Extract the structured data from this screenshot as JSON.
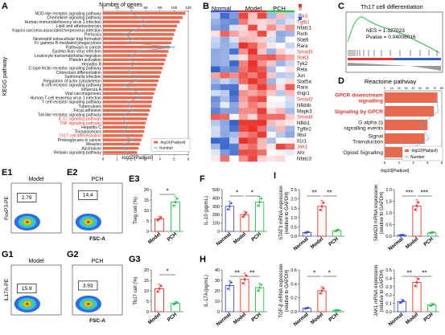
{
  "panel_labels": {
    "A": "A",
    "B": "B",
    "C": "C",
    "D": "D",
    "E1": "E1",
    "E2": "E2",
    "E3": "E3",
    "F": "F",
    "G1": "G1",
    "G2": "G2",
    "G3": "G3",
    "H": "H",
    "I": "I"
  },
  "colors": {
    "bar": "#e8694e",
    "line": "#4db8d9",
    "red_text": "#e8312a",
    "heat_hi": "#e8312a",
    "heat_lo": "#3060c8",
    "model_red": "#e8312a",
    "normal_blue": "#3f4fd6",
    "pch_green": "#2bbf4a"
  },
  "panelA": {
    "top_label": "Number of genes",
    "ylabel": "KEGG pathway",
    "xlabel": "-log10[Padjust]",
    "legend": [
      "-log10(Padjust)",
      "Number"
    ]
  },
  "panelB": {
    "groups": [
      "Normal",
      "Model",
      "PCH"
    ],
    "genes": [
      {
        "name": "Jak3",
        "red": true
      },
      {
        "name": "Tgfb1",
        "red": true
      },
      {
        "name": "Nfatc1",
        "red": false
      },
      {
        "name": "Rxrb",
        "red": false
      },
      {
        "name": "Stat6",
        "red": false
      },
      {
        "name": "Rara",
        "red": false
      },
      {
        "name": "Smad3",
        "red": true
      },
      {
        "name": "Stat3",
        "red": true
      },
      {
        "name": "Tyk2",
        "red": false
      },
      {
        "name": "Rela",
        "red": false
      },
      {
        "name": "Jun",
        "red": false
      },
      {
        "name": "Stat5a",
        "red": false
      },
      {
        "name": "Rara",
        "red": false
      },
      {
        "name": "Ifngr1",
        "red": false
      },
      {
        "name": "Smad2",
        "red": true
      },
      {
        "name": "Nfkbib",
        "red": false
      },
      {
        "name": "Mapk3",
        "red": false
      },
      {
        "name": "Smad4",
        "red": true
      },
      {
        "name": "Nfkb1",
        "red": false
      },
      {
        "name": "Tgfbr2",
        "red": false
      },
      {
        "name": "Il6st",
        "red": false
      },
      {
        "name": "Il1r1",
        "red": false
      },
      {
        "name": "Jak1",
        "red": true
      },
      {
        "name": "Ahr",
        "red": false
      },
      {
        "name": "Nfatc3",
        "red": false
      }
    ]
  },
  "panelC": {
    "title": "Th17 cell differentiation",
    "nes": "NES = 1.327023",
    "pvalue": "Pvalue = 0.04008016"
  },
  "panelD": {
    "title": "Reactome pathway",
    "legend": [
      "-log10(Padjust)",
      "Number"
    ],
    "xlabel": "-log10[Padjust]"
  },
  "panelE": {
    "e1_title": "Model",
    "e2_title": "PCH",
    "e1_gate": "2.79",
    "e2_gate": "14.4",
    "ylabel": "FoxP3-PE",
    "xlabel": "FSC-A"
  },
  "panelG": {
    "g1_title": "Model",
    "g2_title": "PCH",
    "g1_gate": "15.9",
    "g2_gate": "3.93",
    "ylabel": "IL17A-PE",
    "xlabel": "FSC-A"
  },
  "panelE3": {
    "ylabel": "Treg cell (%)",
    "sig": "*"
  },
  "panelF": {
    "ylabel": "IL-10 (pg/mL)",
    "sig": [
      "*",
      "*"
    ]
  },
  "panelG3": {
    "ylabel": "Th17 cell (%)",
    "sig": "*"
  },
  "panelH": {
    "ylabel": "IL-17A (pg/mL)",
    "sig": [
      "**",
      "**"
    ]
  },
  "panelI": {
    "stat3": "STAT3 mRNA expression (relative to GAPDH)",
    "smad3": "SMAD3 mRNA expression (relative to GAPDH)",
    "tgfb": "TGF-β mRNA expression (relative to GAPDH)",
    "jak1": "JAK1 mRNA expression (relative to GAPDH)",
    "sig_stat3": [
      "**",
      "**"
    ],
    "sig_smad3": [
      "***",
      "***"
    ],
    "sig_tgfb": [
      "*",
      "*"
    ],
    "sig_jak1": [
      "**",
      "**"
    ]
  },
  "chart_data": [
    {
      "type": "bar",
      "title": "",
      "xlabel": "-log10[Padjust]",
      "ylabel": "KEGG pathway",
      "categories": [
        "NOD-like receptor signaling pathway",
        "Chemokine signaling pathway",
        "Human immunodeficiency virus 1 infection",
        "Lipid and atherosclerosis",
        "Kaposi sarcoma-associated herpesvirus infection",
        "Pertussis",
        "Neutrophil extracellular trap formation",
        "Fc gamma R-mediated phagocytosis",
        "Pathways in cancer",
        "Epstein-Barr virus infection",
        "Leukocyte transendothelial migration",
        "Platelet activation",
        "Hepatitis B",
        "C-type lectin receptor signaling pathway",
        "Osteoclast differentiation",
        "Salmonella infection",
        "Regulation of actin cytoskeleton",
        "B cell receptor signaling pathway",
        "Influenza A",
        "Viral carcinogenesis",
        "Human T-cell leukemia virus 1 infection",
        "T cell receptor signaling pathway",
        "Tuberculosis",
        "Focal adhesion",
        "Toll-like receptor signaling pathway",
        "IL-17 signaling pathway",
        "TNF signaling pathway",
        "Hepatitis C",
        "Toxoplasmosis",
        "Th17 cell differentiation",
        "Proteoglycans in cancer",
        "Measles",
        "Alcoholism",
        "Relaxin signaling pathway"
      ],
      "series": [
        {
          "name": "-log10(Padjust)",
          "values": [
            5.8,
            5.6,
            5.4,
            5.2,
            5.1,
            5.0,
            4.9,
            4.8,
            4.7,
            4.6,
            4.5,
            4.4,
            4.3,
            4.2,
            4.1,
            4.0,
            3.9,
            3.8,
            3.7,
            3.6,
            3.5,
            3.45,
            3.4,
            3.3,
            3.2,
            3.1,
            3.0,
            2.95,
            2.9,
            2.8,
            2.7,
            2.6,
            2.5,
            2.4
          ]
        },
        {
          "name": "Number",
          "values": [
            38,
            52,
            60,
            55,
            45,
            30,
            42,
            35,
            100,
            50,
            40,
            38,
            46,
            36,
            38,
            45,
            48,
            30,
            40,
            52,
            50,
            35,
            38,
            42,
            30,
            28,
            32,
            35,
            30,
            28,
            42,
            30,
            30,
            32
          ]
        }
      ],
      "xlim": [
        0,
        6
      ],
      "top_axis": {
        "label": "Number of genes",
        "range": [
          0,
          120
        ],
        "ticks": [
          0,
          20,
          40,
          60,
          80,
          100,
          120
        ]
      },
      "legend": "bottom-right"
    },
    {
      "type": "bar",
      "title": "Reactome pathway",
      "xlabel": "-log10[Padjust]",
      "categories": [
        "GPCR downstream signalling",
        "Signaling by GPCR",
        "G alpha (i) signalling events",
        "Signal Transduction",
        "Opioid Signalling"
      ],
      "series": [
        {
          "name": "-log10(Padjust)",
          "values": [
            7.4,
            6.9,
            6.0,
            5.6,
            5.2
          ]
        },
        {
          "name": "Number",
          "values": [
            72,
            75,
            50,
            62,
            28
          ]
        }
      ],
      "xlim": [
        0,
        8
      ],
      "top_axis": {
        "range": [
          0,
          80
        ],
        "ticks": [
          0,
          10,
          20,
          30,
          40,
          50,
          60,
          70,
          80
        ]
      },
      "legend": "bottom-right"
    },
    {
      "type": "bar",
      "title": "",
      "ylabel": "Treg cell (%)",
      "categories": [
        "Model",
        "PCH"
      ],
      "values": [
        6.0,
        14.0
      ],
      "ylim": [
        0,
        20
      ],
      "yticks": [
        0,
        5,
        10,
        15,
        20
      ]
    },
    {
      "type": "bar",
      "title": "",
      "ylabel": "IL-10 (pg/mL)",
      "categories": [
        "Normal",
        "Model",
        "PCH"
      ],
      "values": [
        300,
        200,
        350
      ],
      "ylim": [
        0,
        500
      ],
      "yticks": [
        0,
        100,
        200,
        300,
        400,
        500
      ]
    },
    {
      "type": "bar",
      "title": "",
      "ylabel": "Th17 cell (%)",
      "categories": [
        "Model",
        "PCH"
      ],
      "values": [
        11.0,
        4.0
      ],
      "ylim": [
        0,
        20
      ],
      "yticks": [
        0,
        5,
        10,
        15,
        20
      ]
    },
    {
      "type": "bar",
      "title": "",
      "ylabel": "IL-17A (pg/mL)",
      "categories": [
        "Normal",
        "Model",
        "PCH"
      ],
      "values": [
        25,
        31,
        23
      ],
      "ylim": [
        0,
        40
      ],
      "yticks": [
        0,
        10,
        20,
        30,
        40
      ]
    },
    {
      "type": "bar",
      "title": "",
      "ylabel": "STAT3 mRNA expression (relative to GAPDH)",
      "categories": [
        "Normal",
        "Model",
        "PCH"
      ],
      "values": [
        0.2,
        1.6,
        0.3
      ],
      "ylim": [
        0,
        2.5
      ],
      "yticks": [
        0.0,
        0.5,
        1.0,
        1.5,
        2.0,
        2.5
      ]
    },
    {
      "type": "bar",
      "title": "",
      "ylabel": "SMAD3 mRNA expression (relative to GAPDH)",
      "categories": [
        "Normal",
        "Model",
        "PCH"
      ],
      "values": [
        0.05,
        1.3,
        0.15
      ],
      "ylim": [
        0,
        2.0
      ],
      "yticks": [
        0.0,
        0.5,
        1.0,
        1.5,
        2.0
      ]
    },
    {
      "type": "bar",
      "title": "",
      "ylabel": "TGF-β mRNA expression (relative to GAPDH)",
      "categories": [
        "Normal",
        "Model",
        "PCH"
      ],
      "values": [
        0.05,
        0.3,
        0.02
      ],
      "ylim": [
        0,
        0.6
      ],
      "yticks": [
        0.0,
        0.2,
        0.4,
        0.6
      ]
    },
    {
      "type": "bar",
      "title": "",
      "ylabel": "JAK1 mRNA expression (relative to GAPDH)",
      "categories": [
        "Normal",
        "Model",
        "PCH"
      ],
      "values": [
        0.12,
        0.35,
        0.08
      ],
      "ylim": [
        0,
        0.5
      ],
      "yticks": [
        0.0,
        0.1,
        0.2,
        0.3,
        0.4,
        0.5
      ]
    }
  ]
}
